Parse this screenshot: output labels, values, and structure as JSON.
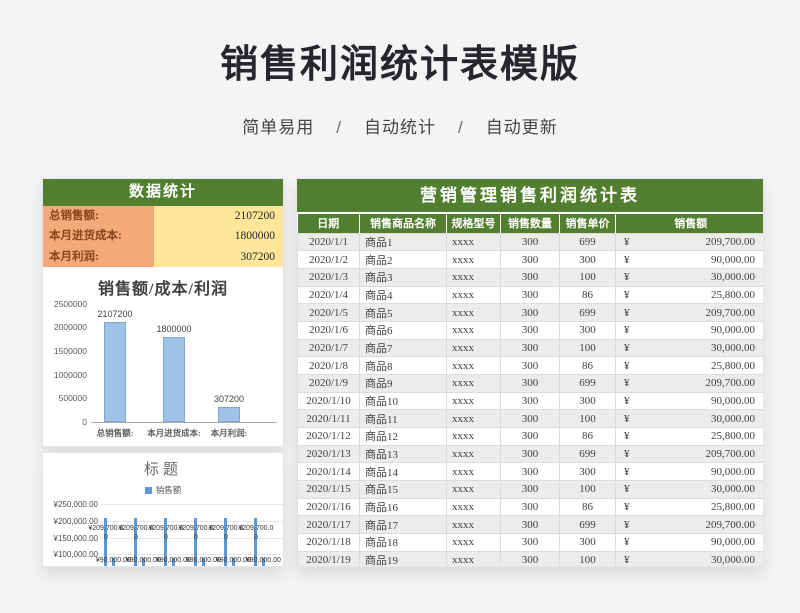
{
  "page": {
    "title": "销售利润统计表模版",
    "subtitle_parts": [
      "简单易用",
      "自动统计",
      "自动更新"
    ],
    "subtitle_separator": "/"
  },
  "stats_panel": {
    "header": "数据统计",
    "rows": [
      {
        "label": "总销售额:",
        "value": "2107200"
      },
      {
        "label": "本月进货成本:",
        "value": "1800000"
      },
      {
        "label": "本月利润:",
        "value": "307200"
      }
    ]
  },
  "chart_data": [
    {
      "type": "bar",
      "title": "销售额/成本/利润",
      "categories": [
        "总销售额:",
        "本月进货成本:",
        "本月利润:"
      ],
      "values": [
        2107200,
        1800000,
        307200
      ],
      "data_labels": [
        "2107200",
        "1800000",
        "307200"
      ],
      "ylim": [
        0,
        2500000
      ],
      "yticks": [
        "2500000",
        "2000000",
        "1500000",
        "1000000",
        "500000",
        "0"
      ],
      "grid": false,
      "legend_position": "none",
      "bar_color": "#9dc3e6"
    },
    {
      "type": "bar",
      "title": "标题",
      "legend": [
        "销售额"
      ],
      "legend_position": "top",
      "series": [
        {
          "name": "销售额",
          "values": [
            209700,
            90000,
            30000,
            25800,
            209700,
            90000,
            30000,
            25800,
            209700,
            90000,
            30000,
            25800,
            209700,
            90000,
            30000,
            25800,
            209700,
            90000,
            30000,
            25800,
            209700,
            90000,
            30000,
            25800
          ]
        }
      ],
      "visible_yticks": [
        "¥250,000.00",
        "¥200,000.00",
        "¥150,000.00",
        "¥100,000.00"
      ],
      "label_for_209700": "¥209,700.00",
      "label_for_90000": "¥90,000.00",
      "grid": true,
      "bar_color": "#5b9bd5",
      "clipped_at_card_bottom": true
    }
  ],
  "sales_table": {
    "title": "营销管理销售利润统计表",
    "columns": [
      "日期",
      "销售商品名称",
      "规格型号",
      "销售数量",
      "销售单价",
      "销售额"
    ],
    "currency": "¥",
    "rows": [
      [
        "2020/1/1",
        "商品1",
        "xxxx",
        "300",
        "699",
        "209,700.00"
      ],
      [
        "2020/1/2",
        "商品2",
        "xxxx",
        "300",
        "300",
        "90,000.00"
      ],
      [
        "2020/1/3",
        "商品3",
        "xxxx",
        "300",
        "100",
        "30,000.00"
      ],
      [
        "2020/1/4",
        "商品4",
        "xxxx",
        "300",
        "86",
        "25,800.00"
      ],
      [
        "2020/1/5",
        "商品5",
        "xxxx",
        "300",
        "699",
        "209,700.00"
      ],
      [
        "2020/1/6",
        "商品6",
        "xxxx",
        "300",
        "300",
        "90,000.00"
      ],
      [
        "2020/1/7",
        "商品7",
        "xxxx",
        "300",
        "100",
        "30,000.00"
      ],
      [
        "2020/1/8",
        "商品8",
        "xxxx",
        "300",
        "86",
        "25,800.00"
      ],
      [
        "2020/1/9",
        "商品9",
        "xxxx",
        "300",
        "699",
        "209,700.00"
      ],
      [
        "2020/1/10",
        "商品10",
        "xxxx",
        "300",
        "300",
        "90,000.00"
      ],
      [
        "2020/1/11",
        "商品11",
        "xxxx",
        "300",
        "100",
        "30,000.00"
      ],
      [
        "2020/1/12",
        "商品12",
        "xxxx",
        "300",
        "86",
        "25,800.00"
      ],
      [
        "2020/1/13",
        "商品13",
        "xxxx",
        "300",
        "699",
        "209,700.00"
      ],
      [
        "2020/1/14",
        "商品14",
        "xxxx",
        "300",
        "300",
        "90,000.00"
      ],
      [
        "2020/1/15",
        "商品15",
        "xxxx",
        "300",
        "100",
        "30,000.00"
      ],
      [
        "2020/1/16",
        "商品16",
        "xxxx",
        "300",
        "86",
        "25,800.00"
      ],
      [
        "2020/1/17",
        "商品17",
        "xxxx",
        "300",
        "699",
        "209,700.00"
      ],
      [
        "2020/1/18",
        "商品18",
        "xxxx",
        "300",
        "300",
        "90,000.00"
      ],
      [
        "2020/1/19",
        "商品19",
        "xxxx",
        "300",
        "100",
        "30,000.00"
      ]
    ]
  },
  "colors": {
    "header_green": "#527f2f",
    "label_orange": "#f4a97b",
    "value_yellow": "#ffe699",
    "label_text_brown": "#87451a",
    "bar_blue_light": "#9dc3e6",
    "bar_blue": "#5b9bd5",
    "row_band_gray": "#ececec",
    "title_text": "#27272b"
  }
}
